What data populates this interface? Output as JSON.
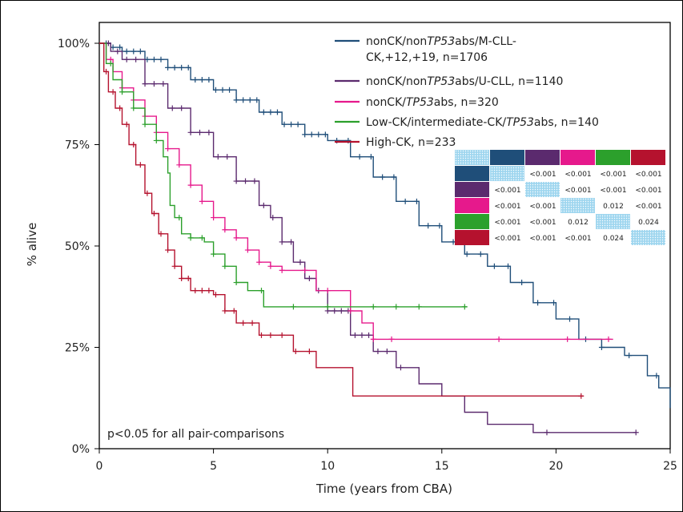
{
  "chart_data": {
    "type": "line",
    "title": "",
    "xlabel": "Time (years from CBA)",
    "ylabel": "% alive",
    "xlim": [
      0,
      25
    ],
    "ylim": [
      0,
      100
    ],
    "x_ticks": [
      "0",
      "5",
      "10",
      "15",
      "20",
      "25"
    ],
    "y_ticks": [
      "0%",
      "25%",
      "50%",
      "75%",
      "100%"
    ],
    "annotation": "p<0.05 for all pair-comparisons",
    "legend_position": "top-right",
    "series": [
      {
        "name_lines": [
          "nonCK/non",
          "TP53",
          "abs/M-CLL-"
        ],
        "name_line2": "CK,+12,+19, n=1706",
        "color": "#1f4e79",
        "points": [
          [
            0,
            100
          ],
          [
            0.5,
            99
          ],
          [
            1,
            98
          ],
          [
            2,
            96
          ],
          [
            3,
            94
          ],
          [
            4,
            91
          ],
          [
            5,
            88.5
          ],
          [
            6,
            86
          ],
          [
            7,
            83
          ],
          [
            8,
            80
          ],
          [
            9,
            77.5
          ],
          [
            10,
            76
          ],
          [
            11,
            72
          ],
          [
            12,
            67
          ],
          [
            13,
            61
          ],
          [
            14,
            55
          ],
          [
            15,
            51
          ],
          [
            16,
            48
          ],
          [
            17,
            45
          ],
          [
            18,
            41
          ],
          [
            19,
            36
          ],
          [
            20,
            32
          ],
          [
            21,
            27
          ],
          [
            22,
            25
          ],
          [
            23,
            23
          ],
          [
            24,
            18
          ],
          [
            24.5,
            15
          ],
          [
            25,
            10
          ]
        ],
        "censor_x": [
          0.3,
          0.6,
          0.9,
          1.2,
          1.5,
          1.8,
          2.1,
          2.4,
          2.7,
          3.0,
          3.3,
          3.6,
          3.9,
          4.2,
          4.5,
          4.8,
          5.1,
          5.4,
          5.7,
          6.0,
          6.3,
          6.6,
          6.9,
          7.2,
          7.5,
          7.8,
          8.1,
          8.4,
          8.7,
          9.0,
          9.3,
          9.6,
          9.9,
          10.4,
          10.9,
          11.4,
          11.9,
          12.4,
          12.9,
          13.4,
          13.9,
          14.4,
          14.9,
          15.5,
          16.1,
          16.7,
          17.3,
          17.9,
          18.5,
          19.2,
          19.9,
          20.6,
          21.3,
          22.0,
          23.2,
          24.4
        ]
      },
      {
        "name": "nonCK/nonTP53abs/U-CLL, n=1140",
        "name_parts": [
          "nonCK/non",
          "TP53",
          "abs/U-CLL, n=1140"
        ],
        "color": "#5b2a6e",
        "points": [
          [
            0,
            100
          ],
          [
            0.5,
            98
          ],
          [
            1,
            96
          ],
          [
            2,
            90
          ],
          [
            3,
            84
          ],
          [
            4,
            78
          ],
          [
            5,
            72
          ],
          [
            6,
            66
          ],
          [
            7,
            60
          ],
          [
            7.5,
            57
          ],
          [
            8,
            51
          ],
          [
            8.5,
            46
          ],
          [
            9,
            42
          ],
          [
            9.5,
            39
          ],
          [
            10,
            34
          ],
          [
            11,
            28
          ],
          [
            12,
            24
          ],
          [
            13,
            20
          ],
          [
            14,
            16
          ],
          [
            15,
            13
          ],
          [
            16,
            9
          ],
          [
            17,
            6
          ],
          [
            18,
            6
          ],
          [
            19,
            4
          ],
          [
            20,
            4
          ],
          [
            23.5,
            4
          ]
        ],
        "censor_x": [
          0.4,
          0.8,
          1.2,
          1.6,
          2.0,
          2.4,
          2.8,
          3.2,
          3.6,
          4.0,
          4.4,
          4.8,
          5.2,
          5.6,
          6.0,
          6.4,
          6.8,
          7.2,
          7.6,
          8.0,
          8.4,
          8.8,
          9.2,
          9.6,
          10.0,
          10.3,
          10.6,
          10.9,
          11.2,
          11.5,
          11.8,
          12.2,
          12.6,
          13.2,
          19.6,
          23.5
        ]
      },
      {
        "name": "nonCK/TP53abs, n=320",
        "name_parts": [
          "nonCK/",
          "TP53",
          "abs, n=320"
        ],
        "color": "#e6198c",
        "points": [
          [
            0,
            100
          ],
          [
            0.3,
            96
          ],
          [
            0.6,
            93
          ],
          [
            1,
            89
          ],
          [
            1.5,
            86
          ],
          [
            2,
            82
          ],
          [
            2.5,
            78
          ],
          [
            3,
            74
          ],
          [
            3.5,
            70
          ],
          [
            4,
            65
          ],
          [
            4.5,
            61
          ],
          [
            5,
            57
          ],
          [
            5.5,
            54
          ],
          [
            6,
            52
          ],
          [
            6.5,
            49
          ],
          [
            7,
            46
          ],
          [
            7.5,
            45
          ],
          [
            8,
            44
          ],
          [
            9,
            44
          ],
          [
            9.5,
            39
          ],
          [
            11,
            34
          ],
          [
            11.5,
            31
          ],
          [
            12,
            27
          ],
          [
            22.5,
            27
          ]
        ],
        "censor_x": [
          0.5,
          1.0,
          1.5,
          2.0,
          2.5,
          3.0,
          3.5,
          4.0,
          4.5,
          5.0,
          5.5,
          6.0,
          6.5,
          7.0,
          7.5,
          8.0,
          9.0,
          10.0,
          11.0,
          12.0,
          12.8,
          17.5,
          20.5,
          22.3
        ]
      },
      {
        "name": "Low-CK/intermediate-CK/TP53abs, n=140",
        "name_parts": [
          "Low-CK/intermediate-CK/",
          "TP53",
          "abs, n=140"
        ],
        "color": "#2ca02c",
        "points": [
          [
            0,
            100
          ],
          [
            0.3,
            95
          ],
          [
            0.6,
            91
          ],
          [
            1,
            88
          ],
          [
            1.5,
            84
          ],
          [
            2,
            80
          ],
          [
            2.5,
            76
          ],
          [
            2.8,
            72
          ],
          [
            3,
            68
          ],
          [
            3.1,
            60
          ],
          [
            3.3,
            57
          ],
          [
            3.6,
            53
          ],
          [
            4,
            52
          ],
          [
            4.6,
            51
          ],
          [
            5,
            48
          ],
          [
            5.5,
            45
          ],
          [
            6,
            41
          ],
          [
            6.5,
            39
          ],
          [
            7,
            39
          ],
          [
            7.2,
            35
          ],
          [
            16.1,
            35
          ]
        ],
        "censor_x": [
          0.5,
          1.0,
          1.5,
          2.0,
          2.5,
          3.5,
          4.0,
          4.5,
          5.0,
          5.5,
          6.0,
          7.1,
          8.5,
          10.0,
          12.0,
          13.0,
          14.0,
          16.0
        ]
      },
      {
        "name": "High-CK, n=233",
        "color": "#b5122e",
        "points": [
          [
            0,
            100
          ],
          [
            0.2,
            93
          ],
          [
            0.4,
            88
          ],
          [
            0.7,
            84
          ],
          [
            1,
            80
          ],
          [
            1.3,
            75
          ],
          [
            1.6,
            70
          ],
          [
            2,
            63
          ],
          [
            2.3,
            58
          ],
          [
            2.6,
            53
          ],
          [
            3,
            49
          ],
          [
            3.3,
            45
          ],
          [
            3.6,
            42
          ],
          [
            4,
            39
          ],
          [
            4.5,
            39
          ],
          [
            5,
            38
          ],
          [
            5.5,
            34
          ],
          [
            6,
            31
          ],
          [
            6.5,
            31
          ],
          [
            7,
            28
          ],
          [
            8,
            28
          ],
          [
            8.5,
            24
          ],
          [
            9,
            24
          ],
          [
            9.5,
            20
          ],
          [
            11,
            20
          ],
          [
            11.1,
            13
          ],
          [
            21.2,
            13
          ]
        ],
        "censor_x": [
          0.3,
          0.6,
          0.9,
          1.2,
          1.5,
          1.8,
          2.1,
          2.4,
          2.7,
          3.0,
          3.3,
          3.6,
          3.9,
          4.2,
          4.5,
          4.8,
          5.1,
          5.5,
          5.9,
          6.3,
          6.7,
          7.1,
          7.5,
          8.0,
          8.6,
          9.2,
          21.1
        ]
      }
    ],
    "pvalue_table": {
      "rows": [
        [
          "",
          "<0.001",
          "<0.001",
          "<0.001",
          "<0.001"
        ],
        [
          "<0.001",
          "",
          "<0.001",
          "<0.001",
          "<0.001"
        ],
        [
          "<0.001",
          "<0.001",
          "",
          "0.012",
          "<0.001"
        ],
        [
          "<0.001",
          "<0.001",
          "0.012",
          "",
          "0.024"
        ],
        [
          "<0.001",
          "<0.001",
          "<0.001",
          "0.024",
          ""
        ]
      ],
      "diagonal_color": "#9fd6ef"
    }
  }
}
